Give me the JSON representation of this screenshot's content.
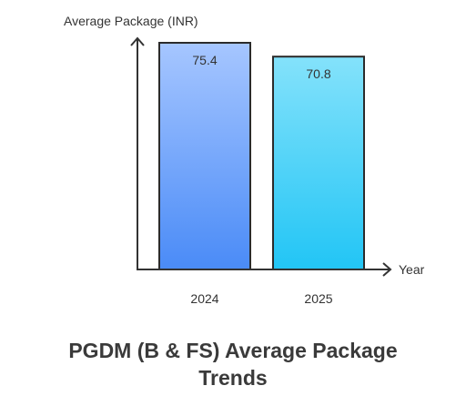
{
  "chart_data": {
    "type": "bar",
    "title_line1": "PGDM (B & FS) Average Package",
    "title_line2": "Trends",
    "ylabel": "Average Package (INR)",
    "xlabel": "Year",
    "categories": [
      "2024",
      "2025"
    ],
    "values": [
      75.4,
      70.8
    ],
    "data_labels": [
      "75.4",
      "70.8"
    ],
    "ylim": [
      0,
      75.4
    ],
    "grid": false,
    "colors": {
      "bar_2024_top": "#a6c6ff",
      "bar_2024_bottom": "#4a8bf7",
      "bar_2025_top": "#84e2fb",
      "bar_2025_bottom": "#22c5f5",
      "stroke": "#2b2b2b",
      "axis": "#333333"
    }
  }
}
